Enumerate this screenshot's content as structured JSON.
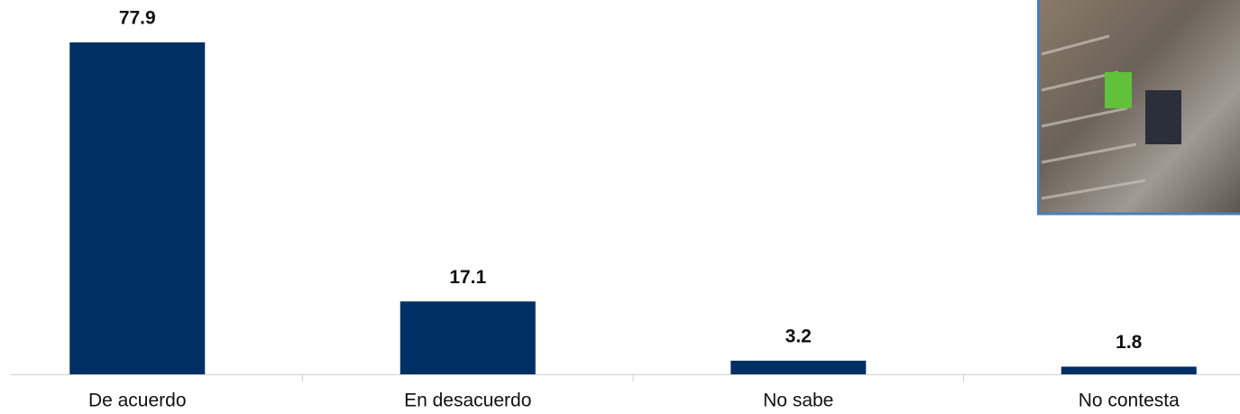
{
  "chart_data": {
    "type": "bar",
    "categories": [
      "De acuerdo",
      "En desacuerdo",
      "No sabe",
      "No contesta"
    ],
    "values": [
      77.9,
      17.1,
      3.2,
      1.8
    ],
    "color": "#003063"
  }
}
